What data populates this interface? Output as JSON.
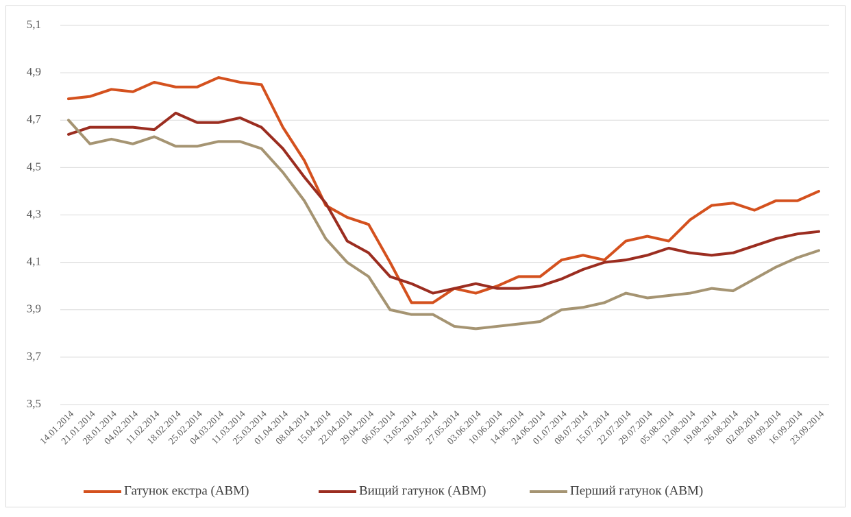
{
  "chart_data": {
    "type": "line",
    "categories": [
      "14.01.2014",
      "21.01.2014",
      "28.01.2014",
      "04.02.2014",
      "11.02.2014",
      "18.02.2014",
      "25.02.2014",
      "04.03.2014",
      "11.03.2014",
      "25.03.2014",
      "01.04.2014",
      "08.04.2014",
      "15.04.2014",
      "22.04.2014",
      "29.04.2014",
      "06.05.2014",
      "13.05.2014",
      "20.05.2014",
      "27.05.2014",
      "03.06.2014",
      "10.06.2014",
      "14.06.2014",
      "24.06.2014",
      "01.07.2014",
      "08.07.2014",
      "15.07.2014",
      "22.07.2014",
      "29.07.2014",
      "05.08.2014",
      "12.08.2014",
      "19.08.2014",
      "26.08.2014",
      "02.09.2014",
      "09.09.2014",
      "16.09.2014",
      "23.09.2014"
    ],
    "series": [
      {
        "name": "Гатунок екстра (АВМ)",
        "color": "#d4511e",
        "values": [
          4.79,
          4.8,
          4.83,
          4.82,
          4.86,
          4.84,
          4.84,
          4.88,
          4.86,
          4.85,
          4.67,
          4.53,
          4.34,
          4.29,
          4.26,
          4.1,
          3.93,
          3.93,
          3.99,
          3.97,
          4.0,
          4.04,
          4.04,
          4.11,
          4.13,
          4.11,
          4.19,
          4.21,
          4.19,
          4.28,
          4.34,
          4.35,
          4.32,
          4.36,
          4.36,
          4.4
        ]
      },
      {
        "name": "Вищий гатунок (АВМ)",
        "color": "#9b2d20",
        "values": [
          4.64,
          4.67,
          4.67,
          4.67,
          4.66,
          4.73,
          4.69,
          4.69,
          4.71,
          4.67,
          4.58,
          4.46,
          4.35,
          4.19,
          4.14,
          4.04,
          4.01,
          3.97,
          3.99,
          4.01,
          3.99,
          3.99,
          4.0,
          4.03,
          4.07,
          4.1,
          4.11,
          4.13,
          4.16,
          4.14,
          4.13,
          4.14,
          4.17,
          4.2,
          4.22,
          4.23
        ]
      },
      {
        "name": "Перший гатунок (АВМ)",
        "color": "#a59472",
        "values": [
          4.7,
          4.6,
          4.62,
          4.6,
          4.63,
          4.59,
          4.59,
          4.61,
          4.61,
          4.58,
          4.48,
          4.36,
          4.2,
          4.1,
          4.04,
          3.9,
          3.88,
          3.88,
          3.83,
          3.82,
          3.83,
          3.84,
          3.85,
          3.9,
          3.91,
          3.93,
          3.97,
          3.95,
          3.96,
          3.97,
          3.99,
          3.98,
          4.03,
          4.08,
          4.12,
          4.15
        ]
      }
    ],
    "ylim": [
      3.5,
      5.1
    ],
    "yticks": [
      {
        "value": 3.5,
        "label": "3,5"
      },
      {
        "value": 3.7,
        "label": "3,7"
      },
      {
        "value": 3.9,
        "label": "3,9"
      },
      {
        "value": 4.1,
        "label": "4,1"
      },
      {
        "value": 4.3,
        "label": "4,3"
      },
      {
        "value": 4.5,
        "label": "4,5"
      },
      {
        "value": 4.7,
        "label": "4,7"
      },
      {
        "value": 4.9,
        "label": "4,9"
      },
      {
        "value": 5.1,
        "label": "5,1"
      }
    ],
    "grid": true,
    "legend": "bottom"
  }
}
